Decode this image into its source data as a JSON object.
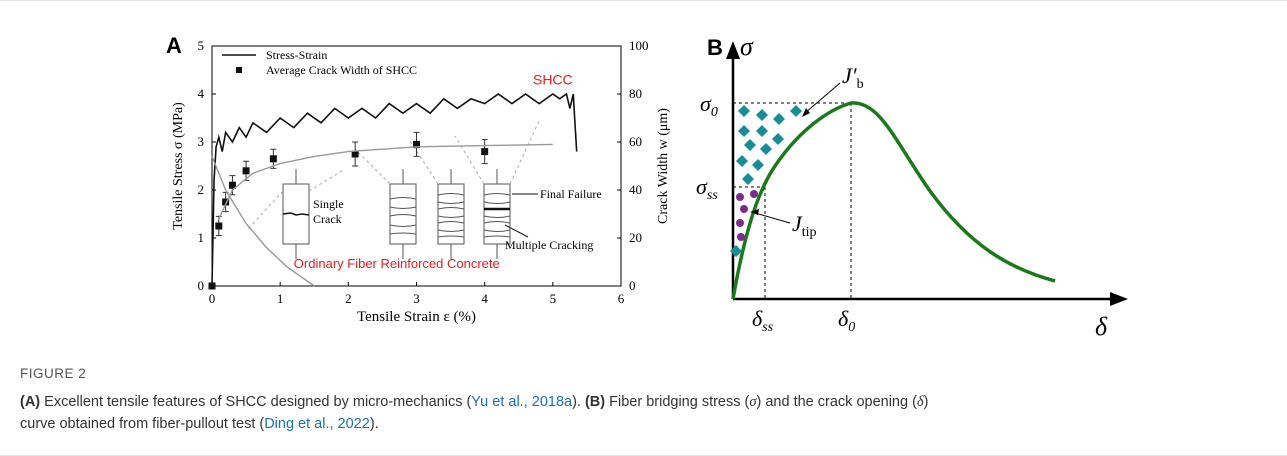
{
  "panel_a": {
    "letter": "A",
    "chart_data": {
      "type": "line",
      "xlabel": "Tensile Strain ε (%)",
      "ylabel": "Tensile Stress σ (MPa)",
      "y2label": "Crack Width w (μm)",
      "xlim": [
        0,
        6
      ],
      "xticks": [
        0,
        1,
        2,
        3,
        4,
        5,
        6
      ],
      "ylim": [
        0,
        5
      ],
      "yticks": [
        0,
        1,
        2,
        3,
        4,
        5
      ],
      "y2lim": [
        0,
        100
      ],
      "y2ticks": [
        0,
        20,
        40,
        60,
        80,
        100
      ],
      "legend": "upper left",
      "series": [
        {
          "name": "Stress-Strain",
          "color": "#111111",
          "kind": "line",
          "x": [
            0,
            0.03,
            0.06,
            0.1,
            0.15,
            0.2,
            0.3,
            0.4,
            0.5,
            0.6,
            0.8,
            1.0,
            1.2,
            1.4,
            1.6,
            1.8,
            2.0,
            2.2,
            2.4,
            2.6,
            2.8,
            3.0,
            3.2,
            3.4,
            3.6,
            3.8,
            4.0,
            4.2,
            4.4,
            4.6,
            4.8,
            5.0,
            5.1,
            5.2,
            5.25,
            5.3,
            5.32,
            5.35
          ],
          "values": [
            0,
            2.2,
            2.9,
            3.1,
            2.8,
            3.2,
            3.0,
            3.3,
            3.1,
            3.4,
            3.2,
            3.5,
            3.3,
            3.6,
            3.4,
            3.7,
            3.5,
            3.7,
            3.5,
            3.8,
            3.6,
            3.8,
            3.6,
            3.9,
            3.7,
            3.9,
            3.8,
            4.0,
            3.8,
            4.0,
            3.8,
            4.0,
            3.9,
            4.0,
            3.7,
            4.0,
            3.5,
            2.8
          ]
        },
        {
          "name": "Average Crack Width of SHCC",
          "color": "#111111",
          "kind": "points",
          "axis": "y2",
          "x": [
            0,
            0.1,
            0.2,
            0.3,
            0.5,
            0.9,
            2.1,
            3.0,
            4.0
          ],
          "values": [
            0,
            25,
            35,
            42,
            48,
            53,
            55,
            59,
            56
          ],
          "errors": [
            0,
            4,
            4,
            4,
            4,
            4,
            5,
            5,
            5
          ]
        },
        {
          "color": "#999999",
          "kind": "line",
          "axis": "y2",
          "x": [
            0.1,
            0.3,
            0.6,
            1,
            1.5,
            2,
            3,
            4,
            5
          ],
          "values": [
            28,
            40,
            47,
            51,
            54,
            56,
            58,
            58.5,
            59
          ]
        },
        {
          "color": "#999999",
          "kind": "line",
          "x": [
            0,
            0.2,
            0.5,
            0.8,
            1.1,
            1.5
          ],
          "values": [
            2.7,
            2.0,
            1.3,
            0.8,
            0.4,
            0
          ]
        }
      ],
      "annotations": {
        "shcc": "SHCC",
        "ordinary": "Ordinary Fiber Reinforced Concrete",
        "single_crack_1": "Single",
        "single_crack_2": "Crack",
        "final_failure": "Final Failure",
        "multiple_cracking": "Multiple Cracking"
      }
    }
  },
  "panel_b": {
    "letter": "B",
    "y_axis": "σ",
    "x_axis": "δ",
    "sigma_0": {
      "base": "σ",
      "sub": "0"
    },
    "sigma_ss": {
      "base": "σ",
      "sub": "ss"
    },
    "delta_ss": {
      "base": "δ",
      "sub": "ss"
    },
    "delta_0": {
      "base": "δ",
      "sub": "0"
    },
    "j_b": {
      "base": "J′",
      "sub": "b"
    },
    "j_tip": {
      "base": "J",
      "sub": "tip"
    }
  },
  "caption": {
    "label": "FIGURE 2",
    "line1": [
      "(A)",
      " Excellent tensile features of SHCC designed by micro-mechanics (",
      "Yu et al., 2018a",
      "). ",
      "(B)",
      " Fiber bridging stress (",
      "σ",
      ") and the crack opening (",
      "δ",
      ")"
    ],
    "line2": [
      "curve obtained from fiber-pullout test (",
      "Ding et al., 2022",
      ")."
    ]
  }
}
